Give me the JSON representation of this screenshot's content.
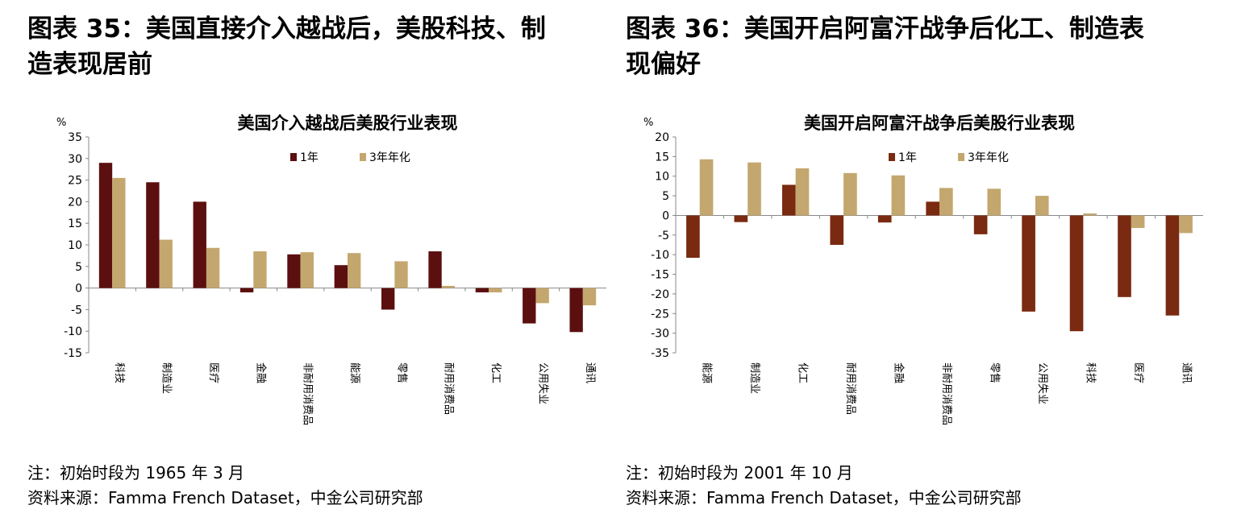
{
  "figures": [
    {
      "title_line1": "图表 35：美国直接介入越战后，美股科技、制",
      "title_line2": "造表现居前",
      "note": "注：初始时段为 1965 年 3 月",
      "source": "资料来源：Famma French Dataset，中金公司研究部"
    },
    {
      "title_line1": "图表 36：美国开启阿富汗战争后化工、制造表",
      "title_line2": "现偏好",
      "note": "注：初始时段为 2001 年 10 月",
      "source": "资料来源：Famma French Dataset，中金公司研究部"
    }
  ],
  "chart_data": [
    {
      "type": "bar",
      "title": "美国介入越战后美股行业表现",
      "unit": "%",
      "categories": [
        "科技",
        "制造业",
        "医疗",
        "金融",
        "非耐用消费品",
        "能源",
        "零售",
        "耐用消费品",
        "化工",
        "公用失业",
        "通讯"
      ],
      "series": [
        {
          "name": "1年",
          "color": "#5c0f0f",
          "values": [
            29,
            24.5,
            20,
            -1,
            7.8,
            5.3,
            -5,
            8.5,
            -1,
            -8.2,
            -10.2
          ]
        },
        {
          "name": "3年年化",
          "color": "#c4a76e",
          "values": [
            25.5,
            11.2,
            9.3,
            8.5,
            8.3,
            8.1,
            6.2,
            0.5,
            -1,
            -3.5,
            -4
          ]
        }
      ],
      "ylim": [
        -15,
        35
      ],
      "yticks": [
        -15,
        -10,
        -5,
        0,
        5,
        10,
        15,
        20,
        25,
        30,
        35
      ],
      "legend_position": "top"
    },
    {
      "type": "bar",
      "title": "美国开启阿富汗战争后美股行业表现",
      "unit": "%",
      "categories": [
        "能源",
        "制造业",
        "化工",
        "耐用消费品",
        "金融",
        "非耐用消费品",
        "零售",
        "公用失业",
        "科技",
        "医疗",
        "通讯"
      ],
      "series": [
        {
          "name": "1年",
          "color": "#7a2a10",
          "values": [
            -10.8,
            -1.7,
            7.8,
            -7.5,
            -1.8,
            3.5,
            -4.8,
            -24.5,
            -29.5,
            -20.8,
            -25.5
          ]
        },
        {
          "name": "3年年化",
          "color": "#c4a76e",
          "values": [
            14.3,
            13.5,
            12,
            10.8,
            10.2,
            7,
            6.8,
            5,
            0.5,
            -3.2,
            -4.5
          ]
        }
      ],
      "ylim": [
        -35,
        20
      ],
      "yticks": [
        -35,
        -30,
        -25,
        -20,
        -15,
        -10,
        -5,
        0,
        5,
        10,
        15,
        20
      ],
      "legend_position": "top"
    }
  ]
}
